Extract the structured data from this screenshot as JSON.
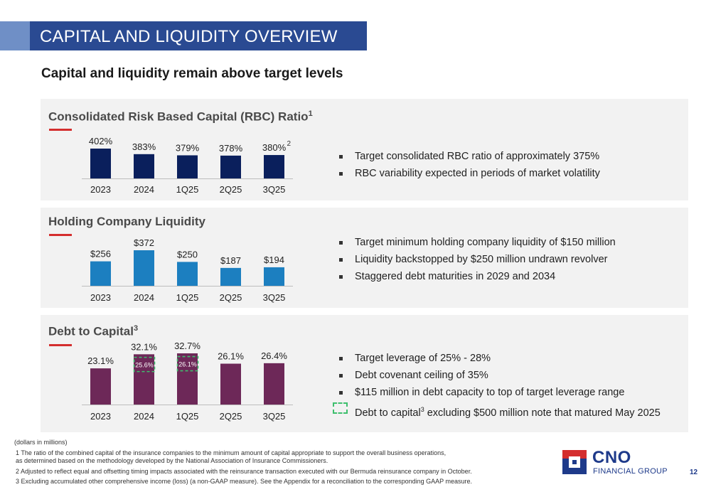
{
  "header": {
    "title": "CAPITAL AND LIQUIDITY OVERVIEW"
  },
  "subtitle": "Capital and liquidity remain above target levels",
  "colors": {
    "rbc": "#0a1f5c",
    "liquidity": "#1c7fc0",
    "debt": "#6d2858",
    "title_band": "#2a4a92",
    "accent_red": "#d42e2e",
    "dash_green": "#3fbf6e"
  },
  "panels": {
    "rbc": {
      "title": "Consolidated Risk Based Capital (RBC) Ratio",
      "title_sup": "1",
      "bullets": [
        "Target consolidated RBC ratio of approximately 375%",
        "RBC variability expected in periods of market volatility"
      ]
    },
    "liquidity": {
      "title": "Holding Company Liquidity",
      "bullets": [
        "Target minimum holding company liquidity of $150 million",
        "Liquidity backstopped by $250 million undrawn revolver",
        "Staggered debt maturities in 2029 and 2034"
      ]
    },
    "debt": {
      "title": "Debt to Capital",
      "title_sup": "3",
      "bullets": [
        "Target leverage of 25% - 28%",
        "Debt covenant ceiling of 35%",
        "$115 million in debt capacity to top of target leverage range"
      ],
      "dashed_note_pre": "Debt to capital",
      "dashed_note_sup": "3",
      "dashed_note_post": " excluding $500 million note that matured May 2025"
    }
  },
  "chart_data": [
    {
      "id": "rbc",
      "type": "bar",
      "title": "Consolidated Risk Based Capital (RBC) Ratio",
      "categories": [
        "2023",
        "2024",
        "1Q25",
        "2Q25",
        "3Q25"
      ],
      "values": [
        402,
        383,
        379,
        378,
        380
      ],
      "labels": [
        "402%",
        "383%",
        "379%",
        "378%",
        "380%"
      ],
      "label_superscripts": [
        "",
        "",
        "",
        "",
        "2"
      ],
      "unit": "%"
    },
    {
      "id": "liquidity",
      "type": "bar",
      "title": "Holding Company Liquidity",
      "categories": [
        "2023",
        "2024",
        "1Q25",
        "2Q25",
        "3Q25"
      ],
      "values": [
        256,
        372,
        250,
        187,
        194
      ],
      "labels": [
        "$256",
        "$372",
        "$250",
        "$187",
        "$194"
      ],
      "unit": "$ millions"
    },
    {
      "id": "debt",
      "type": "bar",
      "title": "Debt to Capital",
      "categories": [
        "2023",
        "2024",
        "1Q25",
        "2Q25",
        "3Q25"
      ],
      "values": [
        23.1,
        32.1,
        32.7,
        26.1,
        26.4
      ],
      "labels": [
        "23.1%",
        "32.1%",
        "32.7%",
        "26.1%",
        "26.4%"
      ],
      "adjusted_values": [
        null,
        25.6,
        26.1,
        null,
        null
      ],
      "adjusted_labels": [
        "",
        "25.6%",
        "26.1%",
        "",
        ""
      ],
      "unit": "%"
    }
  ],
  "footer": {
    "units_note": "(dollars in millions)",
    "notes": [
      "1 The ratio of the combined capital of the insurance companies to the minimum amount of capital appropriate to support the overall business operations,",
      "as determined based on the methodology developed by the National Association of Insurance Commissioners.",
      "2 Adjusted to reflect equal and offsetting timing impacts associated with the reinsurance transaction executed with our Bermuda reinsurance company in October.",
      "3 Excluding accumulated other comprehensive income (loss) (a non-GAAP measure). See the Appendix for a reconciliation to the corresponding GAAP measure."
    ]
  },
  "logo": {
    "name": "CNO",
    "sub": "FINANCIAL GROUP"
  },
  "page_number": "12"
}
